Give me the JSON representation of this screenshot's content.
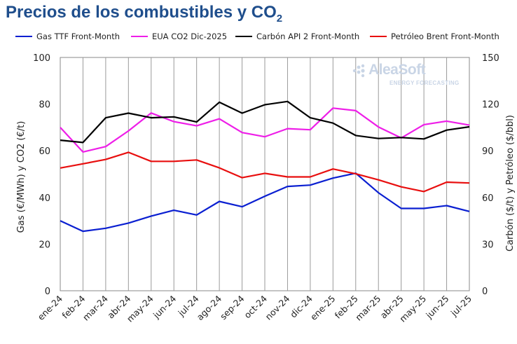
{
  "chart_data": {
    "type": "line",
    "title": "Precios de los combustibles y CO",
    "title_subscript": "2",
    "ylabel_left": "Gas (€/MWh) y CO2 (€/t)",
    "ylabel_right": "Carbón ($/t) y Petróleo ($/bbl)",
    "ylim_left": [
      0,
      100
    ],
    "ylim_right": [
      0,
      150
    ],
    "yticks_left": [
      "0",
      "20",
      "40",
      "60",
      "80",
      "100"
    ],
    "yticks_right": [
      "0",
      "30",
      "60",
      "90",
      "120",
      "150"
    ],
    "grid": "vertical",
    "legend_position": "top",
    "categories": [
      "ene-24",
      "feb-24",
      "mar-24",
      "abr-24",
      "may-24",
      "jun-24",
      "jul-24",
      "ago-24",
      "sep-24",
      "oct-24",
      "nov-24",
      "dic-24",
      "ene-25",
      "feb-25",
      "mar-25",
      "abr-25",
      "may-25",
      "jun-25",
      "jul-25"
    ],
    "series": [
      {
        "name": "Gas TTF Front-Month",
        "color": "#0a1fd1",
        "axis": "left",
        "values": [
          30.0,
          25.5,
          26.8,
          29.0,
          32.0,
          34.5,
          32.5,
          38.3,
          36.0,
          40.5,
          44.7,
          45.3,
          48.3,
          50.4,
          42.0,
          35.3,
          35.3,
          36.5,
          34.0
        ]
      },
      {
        "name": "EUA CO2 Dic-2025",
        "color": "#ee1ee8",
        "axis": "left",
        "values": [
          70.0,
          59.5,
          61.8,
          68.5,
          76.2,
          72.5,
          70.7,
          73.7,
          67.8,
          66.0,
          69.5,
          69.0,
          78.3,
          77.2,
          70.2,
          65.5,
          71.2,
          72.7,
          71.0
        ]
      },
      {
        "name": "Carbón API 2 Front-Month",
        "color": "#000000",
        "axis": "right",
        "values": [
          96.8,
          95.3,
          111.2,
          114.2,
          111.2,
          111.8,
          108.5,
          121.2,
          114.2,
          119.6,
          121.7,
          111.2,
          107.8,
          99.8,
          97.9,
          98.5,
          97.6,
          103.3,
          105.4
        ]
      },
      {
        "name": "Petróleo Brent Front-Month",
        "color": "#e80f0f",
        "axis": "right",
        "values": [
          78.9,
          81.6,
          84.4,
          89.0,
          83.2,
          83.2,
          84.1,
          79.0,
          72.7,
          75.5,
          73.2,
          73.2,
          78.3,
          75.2,
          71.3,
          66.8,
          63.8,
          69.8,
          69.3
        ]
      }
    ]
  },
  "branding": {
    "logo_name": "AleaSoft",
    "logo_tagline": "ENERGY FORECASTING"
  }
}
